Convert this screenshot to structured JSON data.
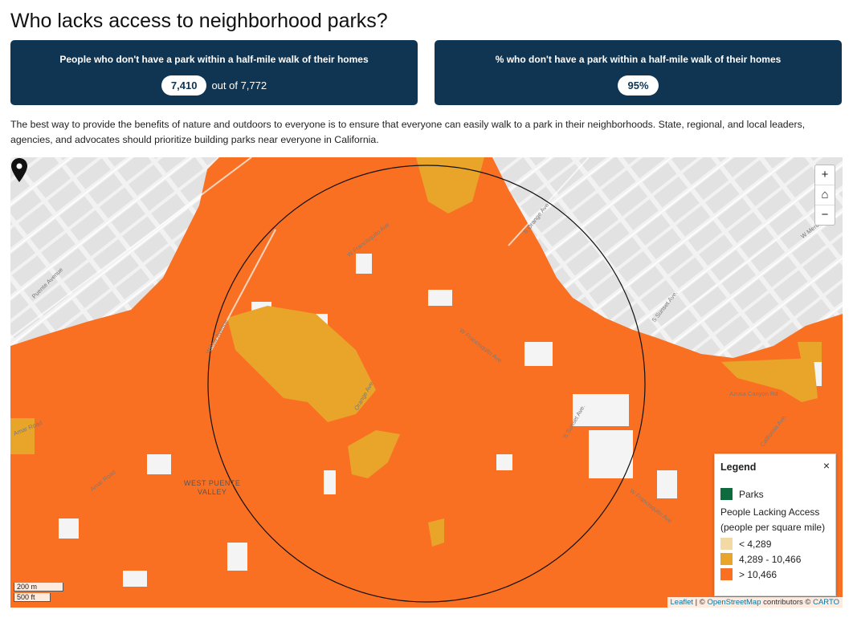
{
  "title": "Who lacks access to neighborhood parks?",
  "cards": [
    {
      "title": "People who don't have a park within a half-mile walk of their homes",
      "value": "7,410",
      "suffix": "out of 7,772"
    },
    {
      "title": "% who don't have a park within a half-mile walk of their homes",
      "value": "95%"
    }
  ],
  "blurb": "The best way to provide the benefits of nature and outdoors to everyone is to ensure that everyone can easily walk to a park in their neighborhoods. State, regional, and local leaders, agencies, and advocates should prioritize building parks near everyone in California.",
  "map": {
    "zoom_in": "+",
    "home": "⌂",
    "zoom_out": "−",
    "place_label": [
      "WEST PUENTE",
      "VALLEY"
    ],
    "streets": [
      "Puente Avenue",
      "Amar Road",
      "Amar Road",
      "Willow Avenue",
      "W Francisquito Ave",
      "W Francisquito Ave",
      "S Orange Ave",
      "S Sunset Ave.",
      "S Sunset Ave.",
      "California Ave.",
      "W Merced Ave.",
      "W Francisquito Ave",
      "Orange Ave",
      "Azusa Canyon Rd"
    ],
    "scale_m": "200 m",
    "scale_ft": "500 ft",
    "attribution": {
      "leaflet": "Leaflet",
      "sep1": " | © ",
      "osm": "OpenStreetMap",
      "mid": " contributors © ",
      "carto": "CARTO"
    }
  },
  "legend": {
    "title": "Legend",
    "close": "×",
    "parks_label": "Parks",
    "access_title_1": "People Lacking Access",
    "access_title_2": "(people per square mile)",
    "bins": [
      "< 4,289",
      "4,289 - 10,466",
      "> 10,466"
    ],
    "colors": {
      "parks": "#0e6b3e",
      "low": "#f3d9a4",
      "mid": "#e8a52a",
      "high": "#fa7023"
    }
  }
}
